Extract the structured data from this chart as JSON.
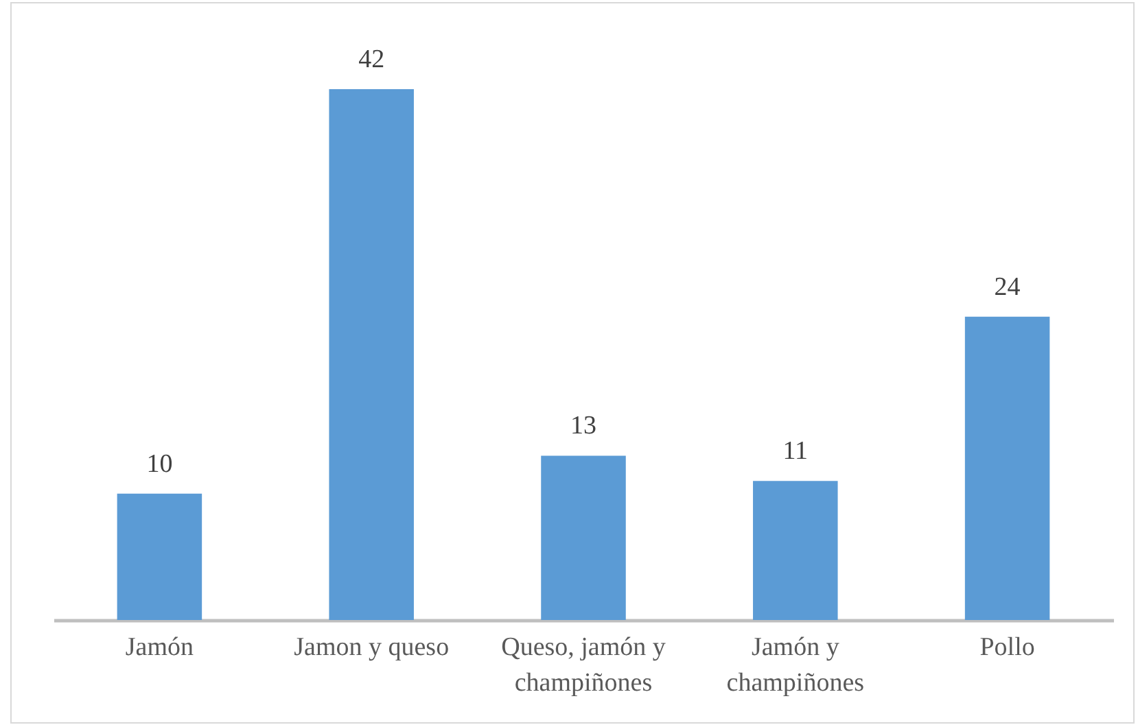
{
  "chart_data": {
    "type": "bar",
    "categories": [
      "Jamón",
      "Jamon y queso",
      "Queso, jamón y champiñones",
      "Jamón y champiñones",
      "Pollo"
    ],
    "values": [
      10,
      42,
      13,
      11,
      24
    ],
    "color": "#5b9bd5",
    "data_labels": true,
    "tick_labels": "x"
  }
}
